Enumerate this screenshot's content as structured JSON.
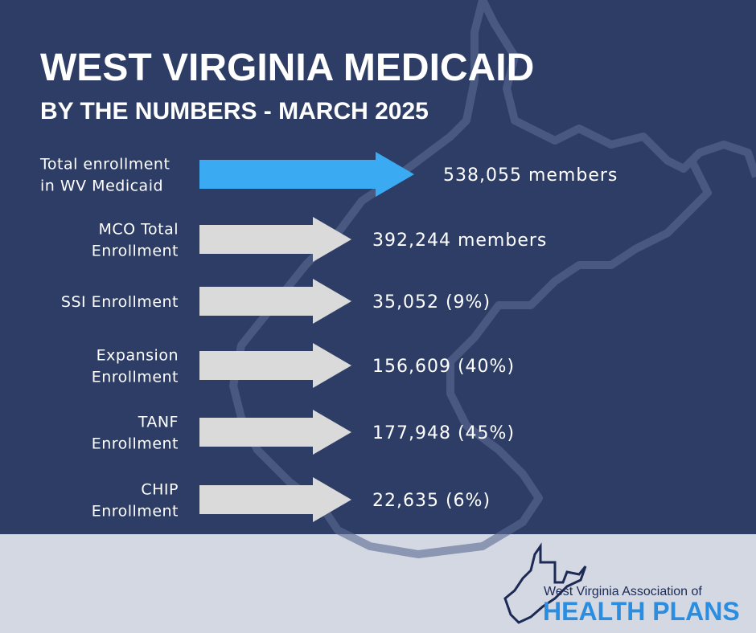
{
  "header": {
    "title": "WEST VIRGINIA MEDICAID",
    "subtitle": "BY THE NUMBERS - MARCH 2025"
  },
  "rows": [
    {
      "label": [
        "Total enrollment",
        "in WV Medicaid"
      ],
      "value": "538,055 members"
    },
    {
      "label": [
        "MCO Total",
        "Enrollment"
      ],
      "value": "392,244 members"
    },
    {
      "label": [
        "SSI Enrollment"
      ],
      "value": "35,052 (9%)"
    },
    {
      "label": [
        "Expansion",
        "Enrollment"
      ],
      "value": "156,609 (40%)"
    },
    {
      "label": [
        "TANF",
        "Enrollment"
      ],
      "value": "177,948 (45%)"
    },
    {
      "label": [
        "CHIP",
        "Enrollment"
      ],
      "value": "22,635 (6%)"
    }
  ],
  "footer": {
    "line1": "West Virginia Association of",
    "line2": "HEALTH PLANS"
  }
}
